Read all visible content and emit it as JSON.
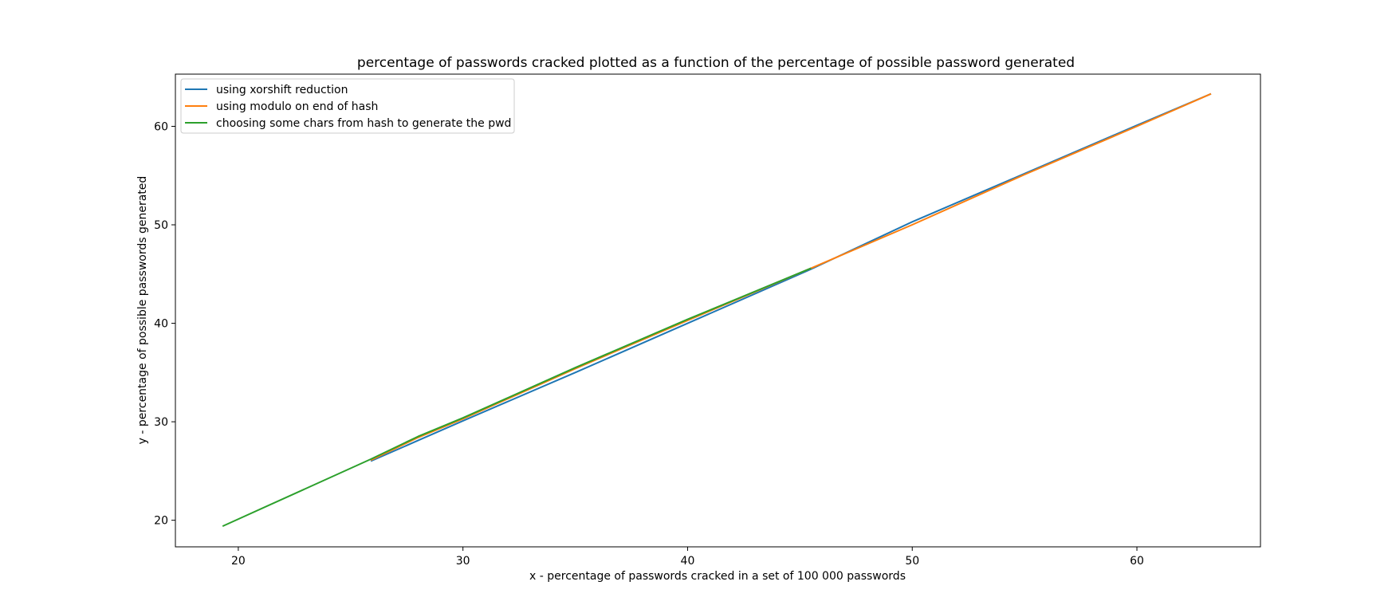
{
  "chart_data": {
    "type": "line",
    "title": "percentage of passwords cracked plotted as a function of the percentage of possible password generated",
    "xlabel": "x - percentage of passwords cracked in a set of 100 000 passwords",
    "ylabel": "y - percentage of possible passwords generated",
    "xlim": [
      17.2,
      65.5
    ],
    "ylim": [
      17.3,
      65.3
    ],
    "xticks": [
      20,
      30,
      40,
      50,
      60
    ],
    "yticks": [
      20,
      30,
      40,
      50,
      60
    ],
    "grid": false,
    "legend_position": "upper-left",
    "series": [
      {
        "name": "using xorshift reduction",
        "color": "#1f77b4",
        "x": [
          25.9,
          28.0,
          30.0,
          35.0,
          40.0,
          45.5,
          50.0,
          55.0,
          60.0,
          63.3
        ],
        "y": [
          26.0,
          28.1,
          30.1,
          35.0,
          40.0,
          45.5,
          50.3,
          55.2,
          60.1,
          63.3
        ]
      },
      {
        "name": "using modulo on end of hash",
        "color": "#ff7f0e",
        "x": [
          25.9,
          28.0,
          30.0,
          35.0,
          40.0,
          45.5,
          50.0,
          55.0,
          60.0,
          63.3
        ],
        "y": [
          26.1,
          28.4,
          30.3,
          35.4,
          40.3,
          45.6,
          50.0,
          55.1,
          60.0,
          63.3
        ]
      },
      {
        "name": "choosing some chars from hash to generate the pwd",
        "color": "#2ca02c",
        "x": [
          19.3,
          25.9,
          28.0,
          30.0,
          35.0,
          40.0,
          45.5
        ],
        "y": [
          19.4,
          26.2,
          28.5,
          30.4,
          35.5,
          40.4,
          45.6
        ]
      }
    ]
  }
}
